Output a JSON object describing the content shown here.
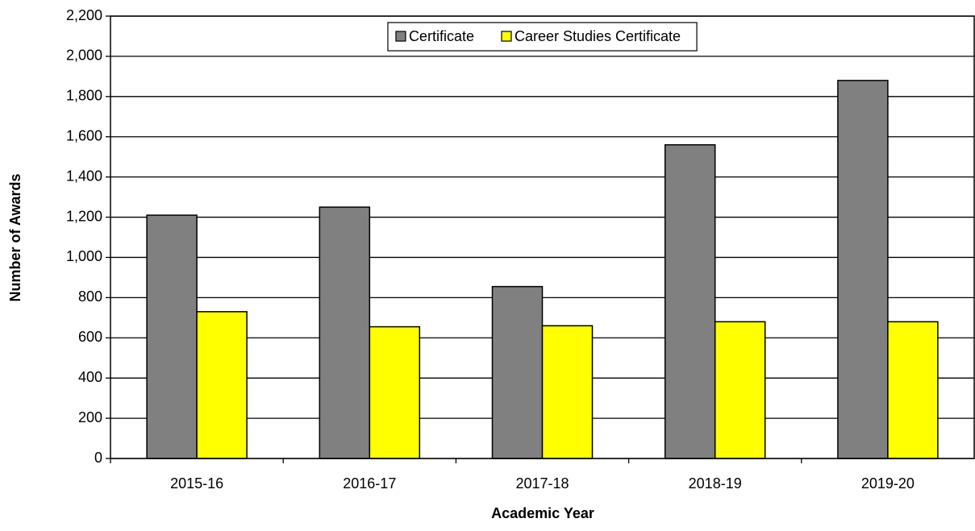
{
  "chart_data": {
    "type": "bar",
    "x_label": "Academic Year",
    "y_label": "Number of Awards",
    "categories": [
      "2015-16",
      "2016-17",
      "2017-18",
      "2018-19",
      "2019-20"
    ],
    "series": [
      {
        "name": "Certificate",
        "color": "#808080",
        "values": [
          1210,
          1250,
          855,
          1560,
          1880
        ]
      },
      {
        "name": "Career Studies Certificate",
        "color": "#ffff00",
        "values": [
          730,
          655,
          660,
          680,
          680
        ]
      }
    ],
    "ylim": [
      0,
      2200
    ],
    "yticks": [
      0,
      200,
      400,
      600,
      800,
      {
        "value": 1000,
        "label": "1,000"
      },
      {
        "value": 1200,
        "label": "1,200"
      },
      {
        "value": 1400,
        "label": "1,400"
      },
      {
        "value": 1600,
        "label": "1,600"
      },
      {
        "value": 1800,
        "label": "1,800"
      },
      {
        "value": 2000,
        "label": "2,000"
      },
      {
        "value": 2200,
        "label": "2,200"
      }
    ],
    "grid": true,
    "legend": "top"
  }
}
